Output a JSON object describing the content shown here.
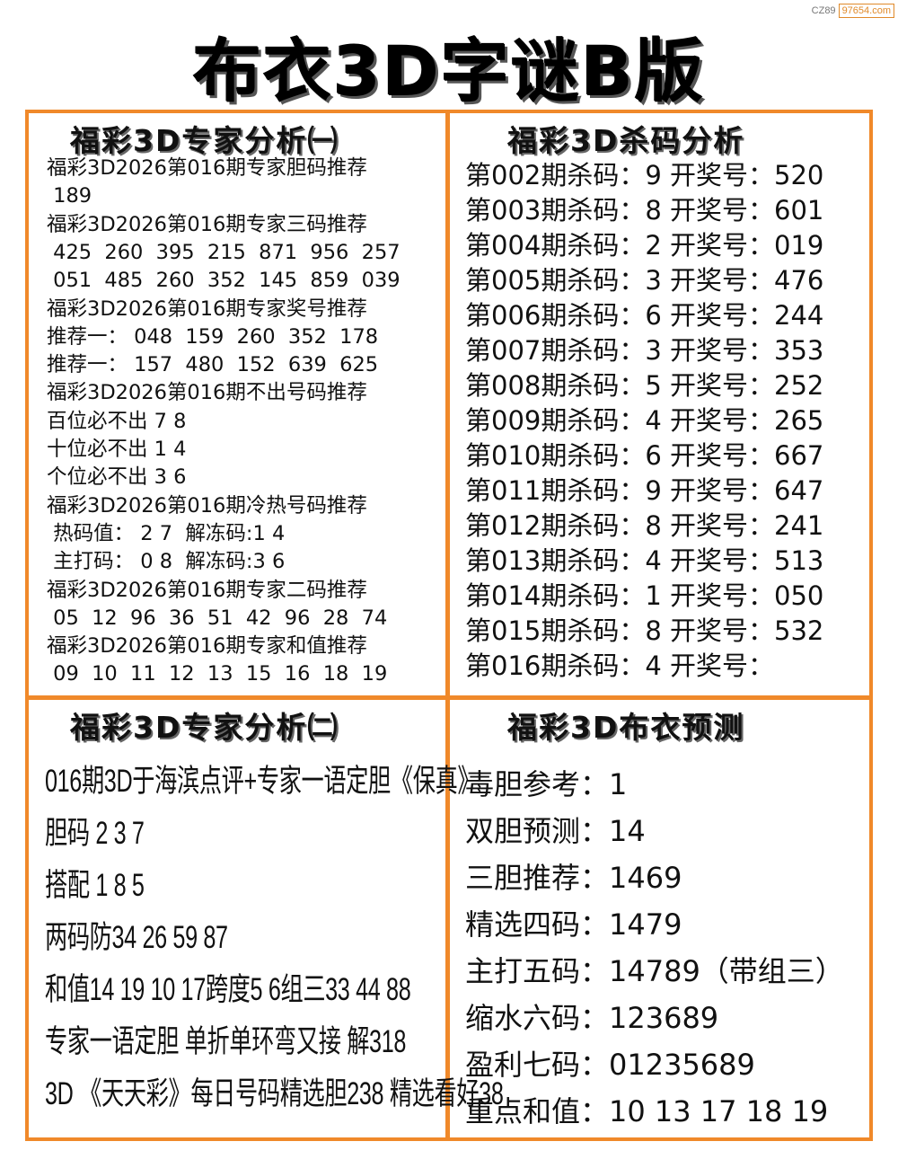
{
  "watermark": {
    "prefix": "CZ89",
    "site": "97654.com"
  },
  "title": "布衣3D字谜B版",
  "panels": {
    "top_left": {
      "header": "福彩3D专家分析㈠",
      "lines": [
        "福彩3D2026第016期专家胆码推荐",
        " 189",
        "福彩3D2026第016期专家三码推荐",
        " 425  260  395  215  871  956  257",
        " 051  485  260  352  145  859  039",
        "福彩3D2026第016期专家奖号推荐",
        "推荐一： 048  159  260  352  178",
        "推荐一： 157  480  152  639  625",
        "福彩3D2026第016期不出号码推荐",
        "百位必不出 7 8",
        "十位必不出 1 4",
        "个位必不出 3 6",
        "福彩3D2026第016期冷热号码推荐",
        " 热码值： 2 7  解冻码:1 4",
        " 主打码： 0 8  解冻码:3 6",
        "福彩3D2026第016期专家二码推荐",
        " 05  12  96  36  51  42  96  28  74",
        "福彩3D2026第016期专家和值推荐",
        " 09  10  11  12  13  15  16  18  19"
      ]
    },
    "top_right": {
      "header": "福彩3D杀码分析",
      "lines": [
        "第002期杀码：9 开奖号：520",
        "第003期杀码：8 开奖号：601",
        "第004期杀码：2 开奖号：019",
        "第005期杀码：3 开奖号：476",
        "第006期杀码：6 开奖号：244",
        "第007期杀码：3 开奖号：353",
        "第008期杀码：5 开奖号：252",
        "第009期杀码：4 开奖号：265",
        "第010期杀码：6 开奖号：667",
        "第011期杀码：9 开奖号：647",
        "第012期杀码：8 开奖号：241",
        "第013期杀码：4 开奖号：513",
        "第014期杀码：1 开奖号：050",
        "第015期杀码：8 开奖号：532",
        "第016期杀码：4 开奖号："
      ]
    },
    "bottom_left": {
      "header": "福彩3D专家分析㈡",
      "lines": [
        "016期3D于海滨点评+专家一语定胆《保真》",
        "胆码 2 3 7",
        "搭配 1 8 5",
        "两码防34 26 59 87",
        "和值14 19 10 17跨度5 6组三33 44 88",
        "专家一语定胆 单折单环弯又接 解318",
        "3D 《天天彩》每日号码精选胆238 精选看好38"
      ]
    },
    "bottom_right": {
      "header": "福彩3D布衣预测",
      "lines": [
        "毒胆参考：1",
        "双胆预测：14",
        "三胆推荐：1469",
        "精选四码：1479",
        "主打五码：14789（带组三）",
        "缩水六码：123689",
        "盈利七码：01235689",
        "重点和值：10 13 17 18 19"
      ]
    }
  },
  "colors": {
    "frame": "#f0892a",
    "text": "#111111"
  }
}
